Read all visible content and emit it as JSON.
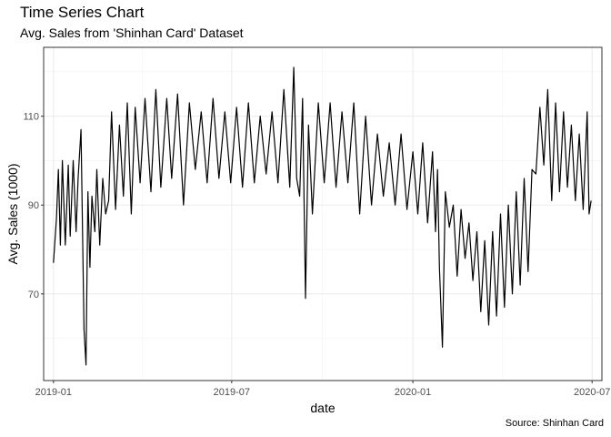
{
  "chart_data": {
    "type": "line",
    "title": "Time Series Chart",
    "subtitle": "Avg. Sales from 'Shinhan Card' Dataset",
    "caption": "Source: Shinhan Card",
    "xlabel": "date",
    "ylabel": "Avg. Sales (1000)",
    "x_range": [
      "2018-12-22",
      "2020-07-11"
    ],
    "ylim": [
      50.5,
      125.5
    ],
    "grid": true,
    "legend": "none",
    "line_color": "#000000",
    "x_ticks": [
      {
        "date": "2019-01-01",
        "label": "2019-01"
      },
      {
        "date": "2019-07-01",
        "label": "2019-07"
      },
      {
        "date": "2020-01-01",
        "label": "2020-01"
      },
      {
        "date": "2020-07-01",
        "label": "2020-07"
      }
    ],
    "y_ticks": [
      70,
      90,
      110
    ],
    "series": [
      {
        "x": [
          "2019-01-01",
          "2019-01-04",
          "2019-01-06",
          "2019-01-08",
          "2019-01-10",
          "2019-01-13",
          "2019-01-16",
          "2019-01-18",
          "2019-01-21",
          "2019-01-24",
          "2019-01-26",
          "2019-01-29",
          "2019-02-01",
          "2019-02-03",
          "2019-02-05",
          "2019-02-07",
          "2019-02-09",
          "2019-02-12",
          "2019-02-14",
          "2019-02-17",
          "2019-02-20",
          "2019-02-23",
          "2019-02-26",
          "2019-03-01",
          "2019-03-05",
          "2019-03-09",
          "2019-03-13",
          "2019-03-17",
          "2019-03-21",
          "2019-03-25",
          "2019-03-30",
          "2019-04-04",
          "2019-04-10",
          "2019-04-15",
          "2019-04-20",
          "2019-04-26",
          "2019-05-01",
          "2019-05-07",
          "2019-05-13",
          "2019-05-19",
          "2019-05-25",
          "2019-05-31",
          "2019-06-06",
          "2019-06-12",
          "2019-06-18",
          "2019-06-24",
          "2019-06-30",
          "2019-07-06",
          "2019-07-12",
          "2019-07-18",
          "2019-07-24",
          "2019-07-30",
          "2019-08-05",
          "2019-08-11",
          "2019-08-17",
          "2019-08-23",
          "2019-08-29",
          "2019-09-02",
          "2019-09-05",
          "2019-09-08",
          "2019-09-11",
          "2019-09-14",
          "2019-09-17",
          "2019-09-21",
          "2019-09-27",
          "2019-10-03",
          "2019-10-09",
          "2019-10-15",
          "2019-10-21",
          "2019-10-27",
          "2019-11-02",
          "2019-11-08",
          "2019-11-14",
          "2019-11-20",
          "2019-11-26",
          "2019-12-02",
          "2019-12-08",
          "2019-12-14",
          "2019-12-20",
          "2019-12-26",
          "2020-01-01",
          "2020-01-06",
          "2020-01-11",
          "2020-01-16",
          "2020-01-21",
          "2020-01-24",
          "2020-01-26",
          "2020-01-28",
          "2020-01-31",
          "2020-02-03",
          "2020-02-07",
          "2020-02-11",
          "2020-02-15",
          "2020-02-19",
          "2020-02-23",
          "2020-02-27",
          "2020-03-02",
          "2020-03-06",
          "2020-03-10",
          "2020-03-14",
          "2020-03-18",
          "2020-03-22",
          "2020-03-26",
          "2020-03-30",
          "2020-04-03",
          "2020-04-07",
          "2020-04-11",
          "2020-04-15",
          "2020-04-19",
          "2020-04-23",
          "2020-04-27",
          "2020-05-01",
          "2020-05-05",
          "2020-05-09",
          "2020-05-13",
          "2020-05-17",
          "2020-05-21",
          "2020-05-25",
          "2020-05-29",
          "2020-06-02",
          "2020-06-06",
          "2020-06-10",
          "2020-06-14",
          "2020-06-18",
          "2020-06-22",
          "2020-06-26",
          "2020-06-28",
          "2020-06-30"
        ],
        "y": [
          77,
          87,
          98,
          81,
          100,
          81,
          99,
          83,
          100,
          84,
          96,
          107,
          62,
          54,
          93,
          76,
          92,
          84,
          98,
          81,
          96,
          88,
          91,
          111,
          89,
          108,
          92,
          113,
          88,
          112,
          95,
          114,
          93,
          116,
          94,
          114,
          96,
          115,
          90,
          113,
          98,
          111,
          95,
          114,
          96,
          111,
          95,
          112,
          94,
          113,
          95,
          110,
          97,
          111,
          95,
          116,
          94,
          121,
          96,
          92,
          114,
          69,
          108,
          88,
          113,
          95,
          113,
          94,
          111,
          95,
          113,
          88,
          110,
          90,
          106,
          92,
          104,
          90,
          106,
          89,
          102,
          88,
          104,
          86,
          102,
          84,
          98,
          76,
          58,
          93,
          85,
          90,
          74,
          89,
          78,
          86,
          73,
          84,
          66,
          82,
          63,
          84,
          65,
          88,
          67,
          90,
          70,
          93,
          72,
          96,
          75,
          98,
          97,
          112,
          99,
          116,
          91,
          113,
          93,
          111,
          94,
          108,
          91,
          106,
          89,
          111,
          88,
          91
        ]
      }
    ]
  }
}
